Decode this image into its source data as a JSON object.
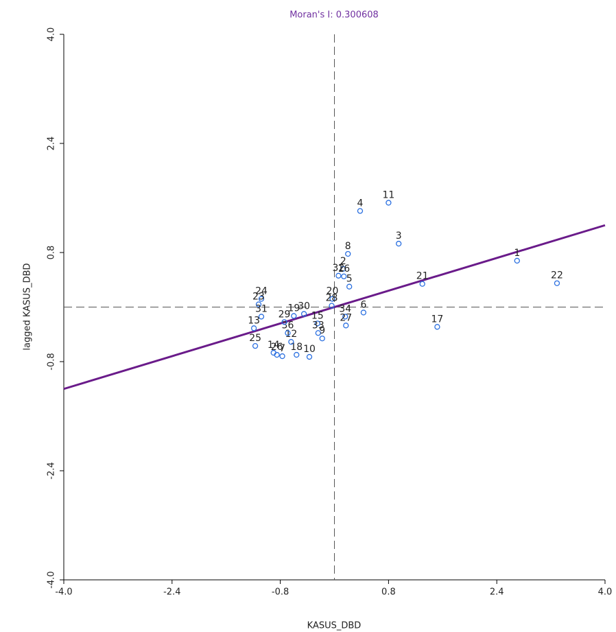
{
  "chart_data": {
    "type": "scatter",
    "title": "Moran's I: 0.300608",
    "x_label": "KASUS_DBD",
    "y_label": "lagged KASUS_DBD",
    "point_labels": [
      "1",
      "22",
      "11",
      "4",
      "3",
      "8",
      "2",
      "32",
      "16",
      "5",
      "21",
      "17",
      "20",
      "28",
      "6",
      "34",
      "27",
      "15",
      "33",
      "9",
      "10",
      "18",
      "12",
      "36",
      "7",
      "26",
      "14",
      "30",
      "19",
      "29",
      "24",
      "23",
      "31",
      "13",
      "25"
    ],
    "x": [
      2.7,
      3.29,
      0.8,
      0.38,
      0.95,
      0.2,
      0.13,
      0.06,
      0.14,
      0.22,
      1.3,
      1.52,
      -0.03,
      -0.04,
      0.43,
      0.16,
      0.17,
      -0.25,
      -0.24,
      -0.18,
      -0.37,
      -0.56,
      -0.64,
      -0.69,
      -0.77,
      -0.85,
      -0.9,
      -0.45,
      -0.6,
      -0.74,
      -1.08,
      -1.12,
      -1.08,
      -1.19,
      -1.17
    ],
    "values": [
      0.68,
      0.35,
      1.53,
      1.41,
      0.93,
      0.78,
      0.56,
      0.46,
      0.45,
      0.3,
      0.34,
      -0.29,
      0.12,
      0.02,
      -0.08,
      -0.14,
      -0.27,
      -0.24,
      -0.38,
      -0.46,
      -0.73,
      -0.7,
      -0.51,
      -0.38,
      -0.72,
      -0.7,
      -0.67,
      -0.1,
      -0.13,
      -0.22,
      0.12,
      0.04,
      -0.14,
      -0.31,
      -0.57
    ],
    "color": "#2a6fe0",
    "fit_line": {
      "x": [
        -4,
        4
      ],
      "y": [
        -1.2,
        1.2
      ],
      "color": "#6a1b8a"
    },
    "xlim": [
      -4,
      4
    ],
    "ylim": [
      -4,
      4
    ],
    "xticks": [
      {
        "value": -4,
        "label": "-4.0"
      },
      {
        "value": -2.4,
        "label": "-2.4"
      },
      {
        "value": -0.8,
        "label": "-0.8"
      },
      {
        "value": 0.8,
        "label": "0.8"
      },
      {
        "value": 2.4,
        "label": "2.4"
      },
      {
        "value": 4,
        "label": "4.0"
      }
    ],
    "yticks": [
      {
        "value": -4,
        "label": "-4.0"
      },
      {
        "value": -2.4,
        "label": "-2.4"
      },
      {
        "value": -0.8,
        "label": "-0.8"
      },
      {
        "value": 0.8,
        "label": "0.8"
      },
      {
        "value": 2.4,
        "label": "2.4"
      },
      {
        "value": 4,
        "label": "4.0"
      }
    ],
    "title_color": "#7030a0"
  }
}
